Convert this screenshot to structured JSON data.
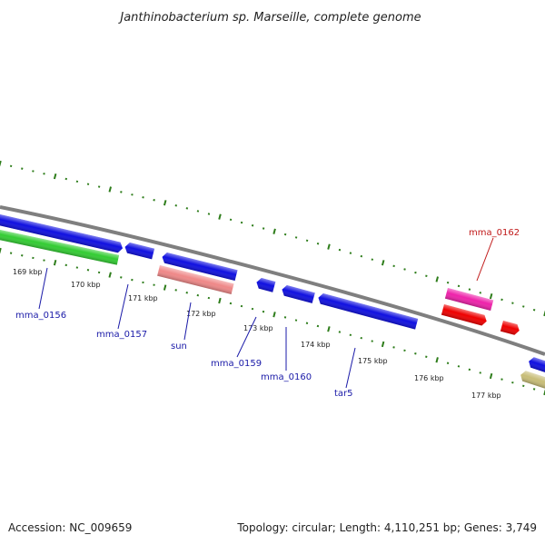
{
  "title": "Janthinobacterium sp. Marseille, complete genome",
  "footer": {
    "accession": "Accession: NC_009659",
    "summary": "Topology: circular; Length: 4,110,251 bp; Genes: 3,749"
  },
  "colors": {
    "backbone": "#7f7f7f",
    "ticks": "#2e7d1b",
    "label_blue": "#1a1aa8",
    "label_red": "#c01818",
    "gene_blue": "#1010e0",
    "gene_green": "#33cc33",
    "gene_pink": "#ef8888",
    "gene_magenta": "#ee22aa",
    "gene_red": "#ee0000",
    "gene_khaki": "#c8bd78"
  },
  "scale_labels": [
    "169 kbp",
    "170 kbp",
    "171 kbp",
    "172 kbp",
    "173 kbp",
    "174 kbp",
    "175 kbp",
    "176 kbp",
    "177 kbp"
  ],
  "gene_labels": [
    {
      "text": "mma_0156",
      "color": "blue"
    },
    {
      "text": "mma_0157",
      "color": "blue"
    },
    {
      "text": "sun",
      "color": "blue"
    },
    {
      "text": "mma_0159",
      "color": "blue"
    },
    {
      "text": "mma_0160",
      "color": "blue"
    },
    {
      "text": "tar5",
      "color": "blue"
    },
    {
      "text": "mma_0162",
      "color": "red"
    }
  ]
}
